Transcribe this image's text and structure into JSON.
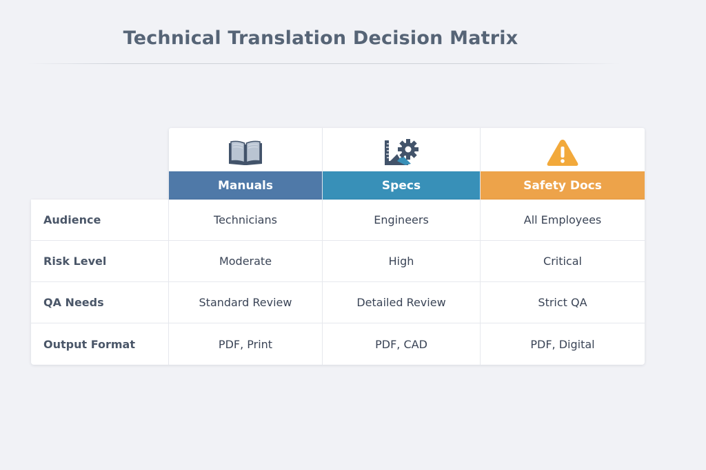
{
  "title": "Technical Translation Decision Matrix",
  "columns": [
    {
      "label": "Manuals",
      "icon": "book-icon",
      "color": "#4f79a8"
    },
    {
      "label": "Specs",
      "icon": "ruler-gear-icon",
      "color": "#3890b8"
    },
    {
      "label": "Safety Docs",
      "icon": "warning-icon",
      "color": "#eda34a"
    }
  ],
  "rows": [
    {
      "label": "Audience",
      "values": [
        "Technicians",
        "Engineers",
        "All Employees"
      ]
    },
    {
      "label": "Risk Level",
      "values": [
        "Moderate",
        "High",
        "Critical"
      ]
    },
    {
      "label": "QA Needs",
      "values": [
        "Standard Review",
        "Detailed Review",
        "Strict QA"
      ]
    },
    {
      "label": "Output Format",
      "values": [
        "PDF, Print",
        "PDF, CAD",
        "PDF, Digital"
      ]
    }
  ]
}
